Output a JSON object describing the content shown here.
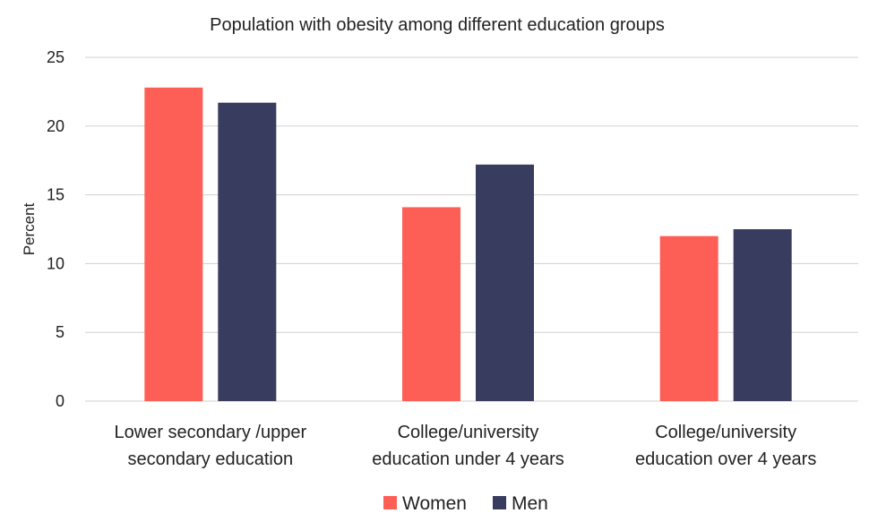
{
  "chart_data": {
    "type": "bar",
    "title": "Population with obesity among different education groups",
    "xlabel": "",
    "ylabel": "Percent",
    "ylim": [
      0,
      25
    ],
    "yticks": [
      0,
      5,
      10,
      15,
      20,
      25
    ],
    "grid": true,
    "legend_position": "bottom",
    "categories": [
      [
        "Lower secondary /upper",
        "secondary education"
      ],
      [
        "College/university",
        "education under 4 years"
      ],
      [
        "College/university",
        "education over 4 years"
      ]
    ],
    "series": [
      {
        "name": "Women",
        "color": "#fd5f56",
        "values": [
          22.8,
          14.1,
          12.0
        ]
      },
      {
        "name": "Men",
        "color": "#383c5f",
        "values": [
          21.7,
          17.2,
          12.5
        ]
      }
    ]
  }
}
